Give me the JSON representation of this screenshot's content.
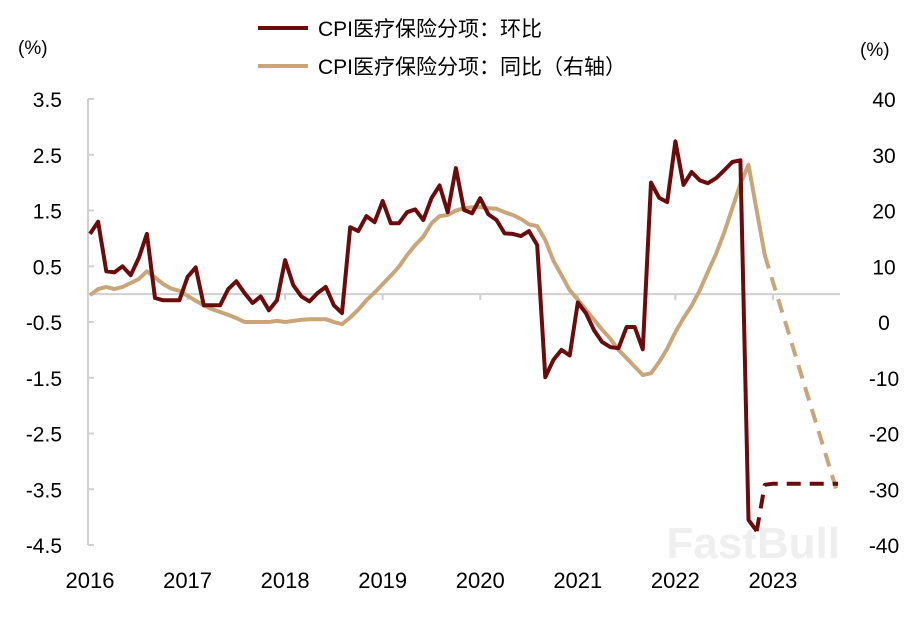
{
  "chart_data": {
    "type": "line",
    "legend_position": "top-center",
    "grid": false,
    "x_start": "2016-01",
    "x_frequency": "monthly",
    "x_tick_labels": [
      "2016",
      "2017",
      "2018",
      "2019",
      "2020",
      "2021",
      "2022",
      "2023"
    ],
    "left_axis": {
      "unit_label": "(%)",
      "range": [
        -4.5,
        3.5
      ],
      "ticks": [
        "3.5",
        "2.5",
        "1.5",
        "0.5",
        "-0.5",
        "-1.5",
        "-2.5",
        "-3.5",
        "-4.5"
      ]
    },
    "right_axis": {
      "unit_label": "(%)",
      "range": [
        -40,
        40
      ],
      "ticks": [
        "40",
        "30",
        "20",
        "10",
        "0",
        "-10",
        "-20",
        "-30",
        "-40"
      ]
    },
    "series": [
      {
        "name": "CPI医疗保险分项：环比",
        "axis": "left",
        "color": "#6b0b0b",
        "values": [
          1.08,
          1.3,
          0.41,
          0.39,
          0.5,
          0.34,
          0.65,
          1.08,
          -0.07,
          -0.11,
          -0.11,
          -0.11,
          0.31,
          0.48,
          -0.2,
          -0.2,
          -0.2,
          0.09,
          0.23,
          0.02,
          -0.16,
          -0.04,
          -0.29,
          -0.11,
          0.61,
          0.16,
          -0.04,
          -0.13,
          0.02,
          0.13,
          -0.2,
          -0.34,
          1.2,
          1.13,
          1.4,
          1.29,
          1.67,
          1.27,
          1.27,
          1.47,
          1.52,
          1.33,
          1.72,
          1.95,
          1.47,
          2.26,
          1.51,
          1.45,
          1.72,
          1.43,
          1.33,
          1.09,
          1.08,
          1.04,
          1.13,
          0.88,
          -1.49,
          -1.18,
          -1.0,
          -1.1,
          -0.15,
          -0.34,
          -0.65,
          -0.86,
          -0.95,
          -0.97,
          -0.59,
          -0.59,
          -0.99,
          2.0,
          1.73,
          1.65,
          2.74,
          1.96,
          2.19,
          2.04,
          1.99,
          2.08,
          2.22,
          2.37,
          2.4,
          -4.05,
          -4.25
        ],
        "forecast_values_from_index_82": [
          -4.25,
          -3.42,
          -3.4,
          -3.4,
          -3.4,
          -3.4,
          -3.4,
          -3.4,
          -3.4,
          -3.4,
          -3.4
        ]
      },
      {
        "name": "CPI医疗保险分项：同比（右轴）",
        "axis": "right",
        "color": "#c9a57a",
        "values": [
          4.8,
          5.9,
          6.3,
          5.9,
          6.3,
          7.0,
          7.7,
          9.1,
          8.0,
          6.8,
          6.0,
          5.6,
          4.7,
          3.8,
          3.0,
          2.3,
          1.8,
          1.3,
          0.7,
          0.0,
          0.0,
          0.0,
          0.0,
          0.2,
          0.0,
          0.2,
          0.4,
          0.5,
          0.5,
          0.5,
          0.0,
          -0.4,
          0.8,
          2.2,
          3.9,
          5.3,
          6.8,
          8.3,
          9.9,
          12.0,
          13.8,
          15.3,
          17.7,
          19.0,
          19.2,
          20.0,
          20.4,
          20.6,
          20.6,
          20.4,
          20.3,
          19.7,
          19.2,
          18.5,
          17.5,
          17.2,
          14.7,
          11.0,
          8.4,
          5.7,
          4.0,
          2.2,
          0.4,
          -1.4,
          -3.0,
          -5.0,
          -6.5,
          -8.0,
          -9.5,
          -9.2,
          -7.2,
          -4.8,
          -1.8,
          0.7,
          2.9,
          5.7,
          9.0,
          12.2,
          16.0,
          20.4,
          24.8,
          28.2,
          20.0,
          12.0
        ],
        "forecast_values_from_index_83": [
          12.0,
          7.2,
          2.4,
          -2.3,
          -7.1,
          -11.9,
          -16.7,
          -21.4,
          -26.2,
          -31.0
        ]
      }
    ]
  },
  "watermark": "FastBull"
}
